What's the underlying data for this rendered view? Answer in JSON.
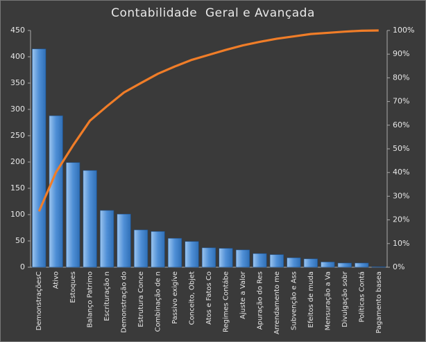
{
  "chart_data": {
    "type": "pareto",
    "title": "Contabilidade  Geral e Avançada",
    "categories": [
      "DemonstraçõesC",
      "Ativo",
      "Estoques",
      "Balanço Patrimo",
      "Escrituração n",
      "Demonstração do",
      "Estrutura Conce",
      "Combinação de n",
      "Passivo exigíve",
      "Conceito, Objet",
      "Atos e Fatos Co",
      "Regimes Contábe",
      "Ajuste a Valor",
      "Apuração do Res",
      "Arrendamento me",
      "Subvenção e Ass",
      "Efeitos de muda",
      "Mensuração a Va",
      "Divulgação sobr",
      "Políticas Contá",
      "Pagamento basea"
    ],
    "series": [
      {
        "type": "bar",
        "color": "#4f8fd6",
        "values": [
          415,
          288,
          199,
          184,
          108,
          101,
          71,
          68,
          55,
          49,
          37,
          36,
          33,
          26,
          24,
          18,
          16,
          10,
          8,
          8,
          1
        ]
      },
      {
        "type": "line",
        "axis": "y2",
        "color": "#f07d28",
        "values": [
          23.6,
          40.1,
          51.4,
          61.9,
          68.0,
          73.8,
          77.8,
          81.7,
          84.8,
          87.6,
          89.7,
          91.8,
          93.7,
          95.2,
          96.5,
          97.5,
          98.5,
          99.0,
          99.5,
          99.9,
          100
        ]
      }
    ],
    "ylim": [
      0,
      450
    ],
    "yticks": [
      0,
      50,
      100,
      150,
      200,
      250,
      300,
      350,
      400,
      450
    ],
    "y2lim": [
      0,
      100
    ],
    "y2ticks": [
      {
        "value": 0,
        "label": "0%"
      },
      {
        "value": 10,
        "label": "10%"
      },
      {
        "value": 20,
        "label": "20%"
      },
      {
        "value": 30,
        "label": "30%"
      },
      {
        "value": 40,
        "label": "40%"
      },
      {
        "value": 50,
        "label": "50%"
      },
      {
        "value": 60,
        "label": "60%"
      },
      {
        "value": 70,
        "label": "70%"
      },
      {
        "value": 80,
        "label": "80%"
      },
      {
        "value": 90,
        "label": "90%"
      },
      {
        "value": 100,
        "label": "100%"
      }
    ],
    "grid": false
  }
}
